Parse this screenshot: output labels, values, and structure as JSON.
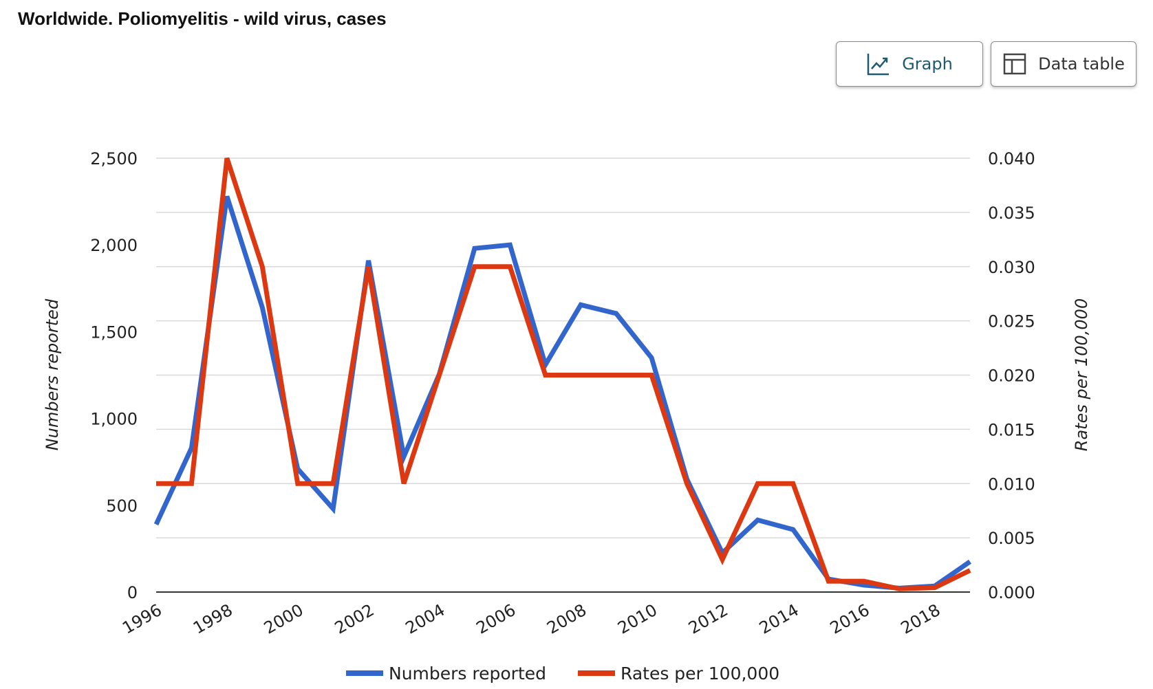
{
  "page": {
    "title": "Worldwide. Poliomyelitis - wild virus, cases"
  },
  "view_toggle": {
    "graph_label": "Graph",
    "graph_icon": "line-chart-icon",
    "table_label": "Data table",
    "table_icon": "table-icon",
    "active": "graph"
  },
  "chart_data": {
    "type": "line",
    "x": [
      1996,
      1997,
      1998,
      1999,
      2000,
      2001,
      2002,
      2003,
      2004,
      2005,
      2006,
      2007,
      2008,
      2009,
      2010,
      2011,
      2012,
      2013,
      2014,
      2015,
      2016,
      2017,
      2018,
      2019
    ],
    "x_tick_labels": [
      "1996",
      "1998",
      "2000",
      "2002",
      "2004",
      "2006",
      "2008",
      "2010",
      "2012",
      "2014",
      "2016",
      "2018"
    ],
    "xlim": [
      1996,
      2019
    ],
    "left_axis": {
      "label": "Numbers reported",
      "ylim": [
        0,
        2500
      ],
      "tick_labels": [
        "0",
        "500",
        "1,000",
        "1,500",
        "2,000",
        "2,500"
      ],
      "tick_values": [
        0,
        500,
        1000,
        1500,
        2000,
        2500
      ]
    },
    "right_axis": {
      "label": "Rates per 100,000",
      "ylim": [
        0,
        0.04
      ],
      "tick_labels": [
        "0.000",
        "0.005",
        "0.010",
        "0.015",
        "0.020",
        "0.025",
        "0.030",
        "0.035",
        "0.040"
      ],
      "tick_values": [
        0,
        0.005,
        0.01,
        0.015,
        0.02,
        0.025,
        0.03,
        0.035,
        0.04
      ]
    },
    "series": [
      {
        "name": "Numbers reported",
        "axis": "left",
        "color": "#3366cc",
        "values": [
          390,
          830,
          2280,
          1640,
          710,
          480,
          1910,
          780,
          1255,
          1980,
          2000,
          1310,
          1655,
          1605,
          1350,
          650,
          225,
          415,
          360,
          75,
          40,
          22,
          35,
          175
        ]
      },
      {
        "name": "Rates per 100,000",
        "axis": "right",
        "color": "#dc3912",
        "values": [
          0.01,
          0.01,
          0.04,
          0.03,
          0.01,
          0.01,
          0.03,
          0.01,
          0.02,
          0.03,
          0.03,
          0.02,
          0.02,
          0.02,
          0.02,
          0.01,
          0.003,
          0.01,
          0.01,
          0.001,
          0.001,
          0.0003,
          0.0004,
          0.002
        ]
      }
    ],
    "grid": true,
    "legend_position": "bottom"
  }
}
